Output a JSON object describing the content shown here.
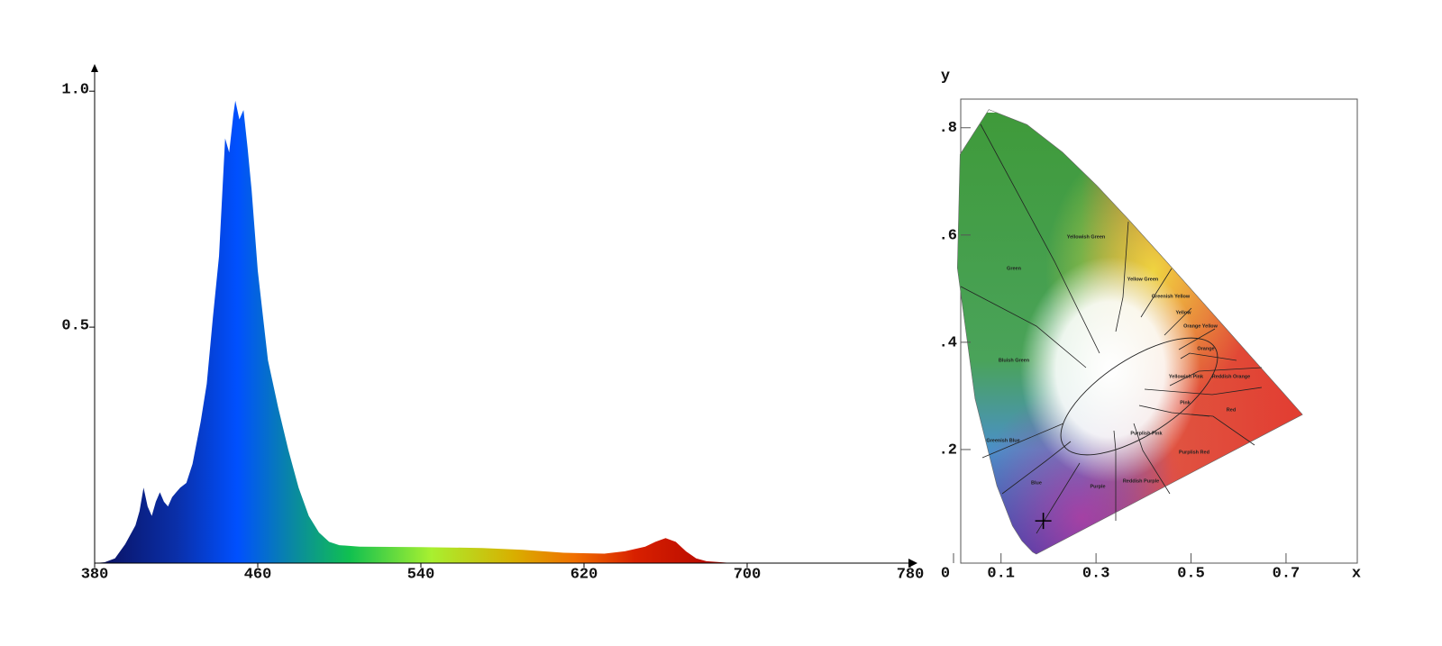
{
  "chart_data": [
    {
      "type": "area",
      "x": [
        380,
        385,
        390,
        395,
        400,
        402,
        404,
        406,
        408,
        410,
        412,
        414,
        416,
        418,
        420,
        422,
        425,
        428,
        432,
        435,
        438,
        441,
        444,
        446,
        448,
        449,
        451,
        453,
        455,
        457,
        460,
        465,
        470,
        475,
        480,
        485,
        490,
        495,
        500,
        510,
        540,
        570,
        590,
        610,
        630,
        640,
        650,
        655,
        660,
        665,
        670,
        675,
        680,
        690,
        700,
        780
      ],
      "values": [
        0,
        0.002,
        0.01,
        0.04,
        0.08,
        0.11,
        0.16,
        0.12,
        0.1,
        0.13,
        0.15,
        0.13,
        0.12,
        0.14,
        0.15,
        0.16,
        0.17,
        0.21,
        0.3,
        0.38,
        0.52,
        0.65,
        0.9,
        0.87,
        0.95,
        0.98,
        0.94,
        0.96,
        0.88,
        0.79,
        0.62,
        0.43,
        0.33,
        0.24,
        0.16,
        0.1,
        0.065,
        0.045,
        0.038,
        0.035,
        0.034,
        0.032,
        0.028,
        0.022,
        0.02,
        0.025,
        0.035,
        0.045,
        0.053,
        0.045,
        0.025,
        0.01,
        0.004,
        0.001,
        0,
        0
      ],
      "xlim": [
        380,
        780
      ],
      "ylim": [
        0,
        1.05
      ],
      "xticks": [
        380,
        460,
        540,
        620,
        700,
        780
      ],
      "yticks": [
        0.5,
        {
          "value": 1,
          "label": "1.0"
        }
      ],
      "fill_gradient": [
        {
          "x": 380,
          "color": "#0b0f5c"
        },
        {
          "x": 420,
          "color": "#0a2fa8"
        },
        {
          "x": 450,
          "color": "#0050ff"
        },
        {
          "x": 478,
          "color": "#0a8aa0"
        },
        {
          "x": 505,
          "color": "#10c050"
        },
        {
          "x": 545,
          "color": "#a8f030"
        },
        {
          "x": 585,
          "color": "#d8b000"
        },
        {
          "x": 615,
          "color": "#f07000"
        },
        {
          "x": 645,
          "color": "#d82000"
        },
        {
          "x": 700,
          "color": "#a80000"
        }
      ]
    },
    {
      "type": "chromaticity",
      "xlabel": "x",
      "ylabel": "y",
      "xlim": [
        0,
        0.85
      ],
      "ylim": [
        0,
        0.85
      ],
      "xticks": [
        0,
        0.1,
        0.3,
        0.5,
        0.7
      ],
      "yticks": [
        {
          "value": 0.2,
          "label": ".2"
        },
        {
          "value": 0.4,
          "label": ".4"
        },
        {
          "value": 0.6,
          "label": ".6"
        },
        {
          "value": 0.8,
          "label": ".8"
        }
      ],
      "spectral_locus": {
        "x": [
          0.1741,
          0.1666,
          0.144,
          0.1241,
          0.0913,
          0.0454,
          0.0082,
          0.0139,
          0.0743,
          0.1547,
          0.2296,
          0.3016,
          0.3731,
          0.4441,
          0.5125,
          0.5752,
          0.627,
          0.6658,
          0.6915,
          0.7347
        ],
        "y": [
          0.005,
          0.0089,
          0.0297,
          0.0578,
          0.1327,
          0.295,
          0.5384,
          0.7502,
          0.8338,
          0.8059,
          0.7543,
          0.6923,
          0.6245,
          0.5547,
          0.4866,
          0.4242,
          0.3725,
          0.334,
          0.3083,
          0.2653
        ]
      },
      "regions": [
        "Yellowish Green",
        "Green",
        "Yellow Green",
        "Greenish Yellow",
        "Yellow",
        "Orange Yellow",
        "Orange",
        "Bluish Green",
        "Yellowish Pink",
        "Reddish Orange",
        "Pink",
        "Red",
        "Greenish Blue",
        "Purplish Pink",
        "Purplish Red",
        "Blue",
        "Purple",
        "Reddish Purple"
      ],
      "point": {
        "x": 0.189,
        "y": 0.067
      }
    }
  ]
}
